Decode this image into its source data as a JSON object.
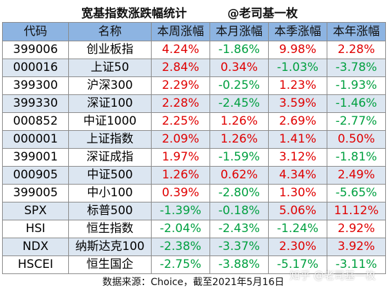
{
  "header": {
    "title": "宽基指数涨跌幅统计",
    "author": "@老司基一枚"
  },
  "table": {
    "columns": [
      "代码",
      "名称",
      "本周涨幅",
      "本月涨幅",
      "本季涨幅",
      "本年涨幅"
    ],
    "rows": [
      {
        "code": "399006",
        "name": "创业板指",
        "week": "4.24%",
        "month": "-1.86%",
        "quarter": "9.98%",
        "year": "2.28%"
      },
      {
        "code": "000016",
        "name": "上证50",
        "week": "2.84%",
        "month": "0.34%",
        "quarter": "-1.03%",
        "year": "-3.78%"
      },
      {
        "code": "399300",
        "name": "沪深300",
        "week": "2.29%",
        "month": "-0.25%",
        "quarter": "1.23%",
        "year": "-1.93%"
      },
      {
        "code": "399330",
        "name": "深证100",
        "week": "2.28%",
        "month": "-2.45%",
        "quarter": "3.59%",
        "year": "-1.46%"
      },
      {
        "code": "000852",
        "name": "中证1000",
        "week": "2.25%",
        "month": "1.26%",
        "quarter": "2.69%",
        "year": "-2.77%"
      },
      {
        "code": "000001",
        "name": "上证指数",
        "week": "2.09%",
        "month": "1.26%",
        "quarter": "1.41%",
        "year": "0.50%"
      },
      {
        "code": "399001",
        "name": "深证成指",
        "week": "1.97%",
        "month": "-1.59%",
        "quarter": "3.12%",
        "year": "-1.81%"
      },
      {
        "code": "000905",
        "name": "中证500",
        "week": "1.26%",
        "month": "0.62%",
        "quarter": "4.34%",
        "year": "2.49%"
      },
      {
        "code": "399005",
        "name": "中小100",
        "week": "0.39%",
        "month": "-2.80%",
        "quarter": "1.30%",
        "year": "-5.65%"
      },
      {
        "code": "SPX",
        "name": "标普500",
        "week": "-1.39%",
        "month": "-0.18%",
        "quarter": "5.06%",
        "year": "11.12%"
      },
      {
        "code": "HSI",
        "name": "恒生指数",
        "week": "-2.04%",
        "month": "-2.43%",
        "quarter": "-1.24%",
        "year": "2.92%"
      },
      {
        "code": "NDX",
        "name": "纳斯达克100",
        "week": "-2.38%",
        "month": "-3.37%",
        "quarter": "2.30%",
        "year": "3.92%"
      },
      {
        "code": "HSCEI",
        "name": "恒生国企",
        "week": "-2.75%",
        "month": "-3.88%",
        "quarter": "-5.17%",
        "year": "-3.11%"
      }
    ]
  },
  "footer": {
    "source": "数据来源：Choice，截至2021年5月16日"
  },
  "watermark": {
    "text": "知乎 @老司基一枚"
  },
  "colors": {
    "header_bg": "#8db4e2",
    "stripe_bg": "#dce6f1",
    "positive": "#e00000",
    "negative": "#00a040"
  }
}
